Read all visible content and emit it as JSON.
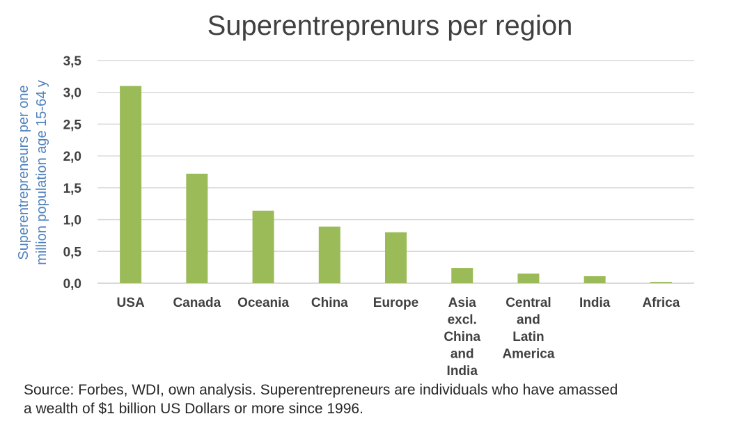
{
  "chart_data": {
    "type": "bar",
    "title": "Superentreprenurs per region",
    "ylabel": [
      "Superentrepreneurs per one",
      "million  population age 15-64 y"
    ],
    "xlabel": "",
    "categories": [
      [
        "USA"
      ],
      [
        "Canada"
      ],
      [
        "Oceania"
      ],
      [
        "China"
      ],
      [
        "Europe"
      ],
      [
        "Asia",
        "excl.",
        "China",
        "and",
        "India"
      ],
      [
        "Central",
        "and",
        "Latin",
        "America"
      ],
      [
        "India"
      ],
      [
        "Africa"
      ]
    ],
    "values": [
      3.1,
      1.72,
      1.14,
      0.89,
      0.8,
      0.24,
      0.15,
      0.11,
      0.02
    ],
    "ylim": [
      0,
      3.5
    ],
    "yticks": [
      "0,0",
      "0,5",
      "1,0",
      "1,5",
      "2,0",
      "2,5",
      "3,0",
      "3,5"
    ],
    "grid": true,
    "legend": "none",
    "bar_color": "#9bbb59",
    "grid_color": "#d9d9d9",
    "source_note": [
      "Source: Forbes, WDI, own analysis. Superentrepreneurs are individuals  who have amassed",
      "a wealth  of $1 billion  US Dollars or more since 1996."
    ]
  }
}
